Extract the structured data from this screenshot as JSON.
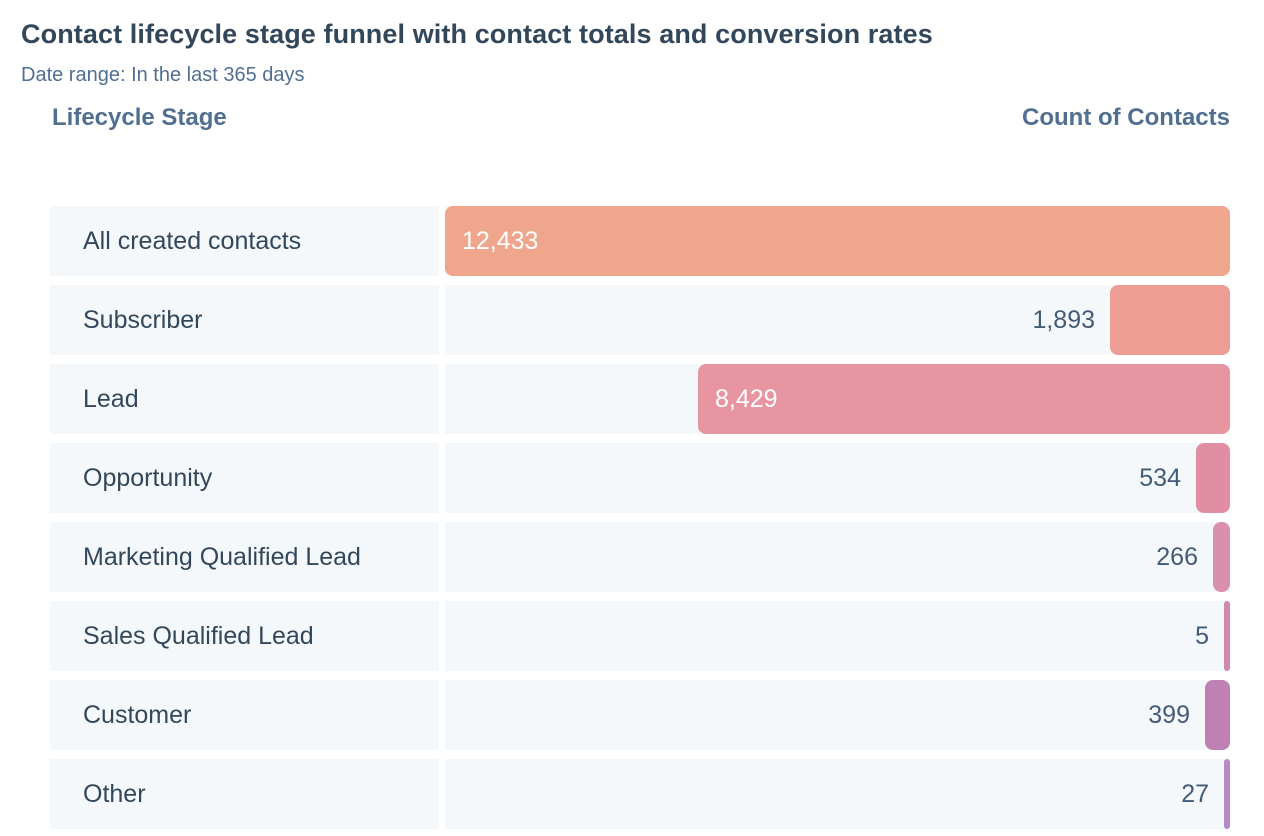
{
  "header": {
    "title": "Contact lifecycle stage funnel with contact totals and conversion rates",
    "date_range_label": "Date range: In the last 365 days"
  },
  "columns": {
    "left": "Lifecycle Stage",
    "right": "Count of Contacts"
  },
  "theme": {
    "title_color": "#33475b",
    "secondary_text_color": "#516f90",
    "row_background": "#f5f8fa",
    "outside_value_color": "#425b76",
    "inside_value_color": "#ffffff",
    "page_background": "#ffffff"
  },
  "rows": [
    {
      "label": "All created contacts",
      "value": "12,433",
      "color": "#f0a68c",
      "value_inside": true
    },
    {
      "label": "Subscriber",
      "value": "1,893",
      "color": "#ee9d94",
      "value_inside": false
    },
    {
      "label": "Lead",
      "value": "8,429",
      "color": "#e795a0",
      "value_inside": true
    },
    {
      "label": "Opportunity",
      "value": "534",
      "color": "#e18ea4",
      "value_inside": false
    },
    {
      "label": "Marketing Qualified Lead",
      "value": "266",
      "color": "#d890ae",
      "value_inside": false
    },
    {
      "label": "Sales Qualified Lead",
      "value": "5",
      "color": "#cf8ab2",
      "value_inside": false
    },
    {
      "label": "Customer",
      "value": "399",
      "color": "#bf80b4",
      "value_inside": false
    },
    {
      "label": "Other",
      "value": "27",
      "color": "#b48bc7",
      "value_inside": false
    }
  ],
  "chart_data": {
    "type": "bar",
    "subtype": "funnel",
    "orientation": "horizontal",
    "bar_alignment": "right",
    "title": "Contact lifecycle stage funnel with contact totals and conversion rates",
    "date_range": "In the last 365 days",
    "categories": [
      "All created contacts",
      "Subscriber",
      "Lead",
      "Opportunity",
      "Marketing Qualified Lead",
      "Sales Qualified Lead",
      "Customer",
      "Other"
    ],
    "values": [
      12433,
      1893,
      8429,
      534,
      266,
      5,
      399,
      27
    ],
    "value_labels": [
      "12,433",
      "1,893",
      "8,429",
      "534",
      "266",
      "5",
      "399",
      "27"
    ],
    "bar_colors": [
      "#f0a68c",
      "#ee9d94",
      "#e795a0",
      "#e18ea4",
      "#d890ae",
      "#cf8ab2",
      "#bf80b4",
      "#b48bc7"
    ],
    "x_max": 12433,
    "xlabel": "Count of Contacts",
    "ylabel": "Lifecycle Stage",
    "grid": false,
    "legend": "none"
  }
}
